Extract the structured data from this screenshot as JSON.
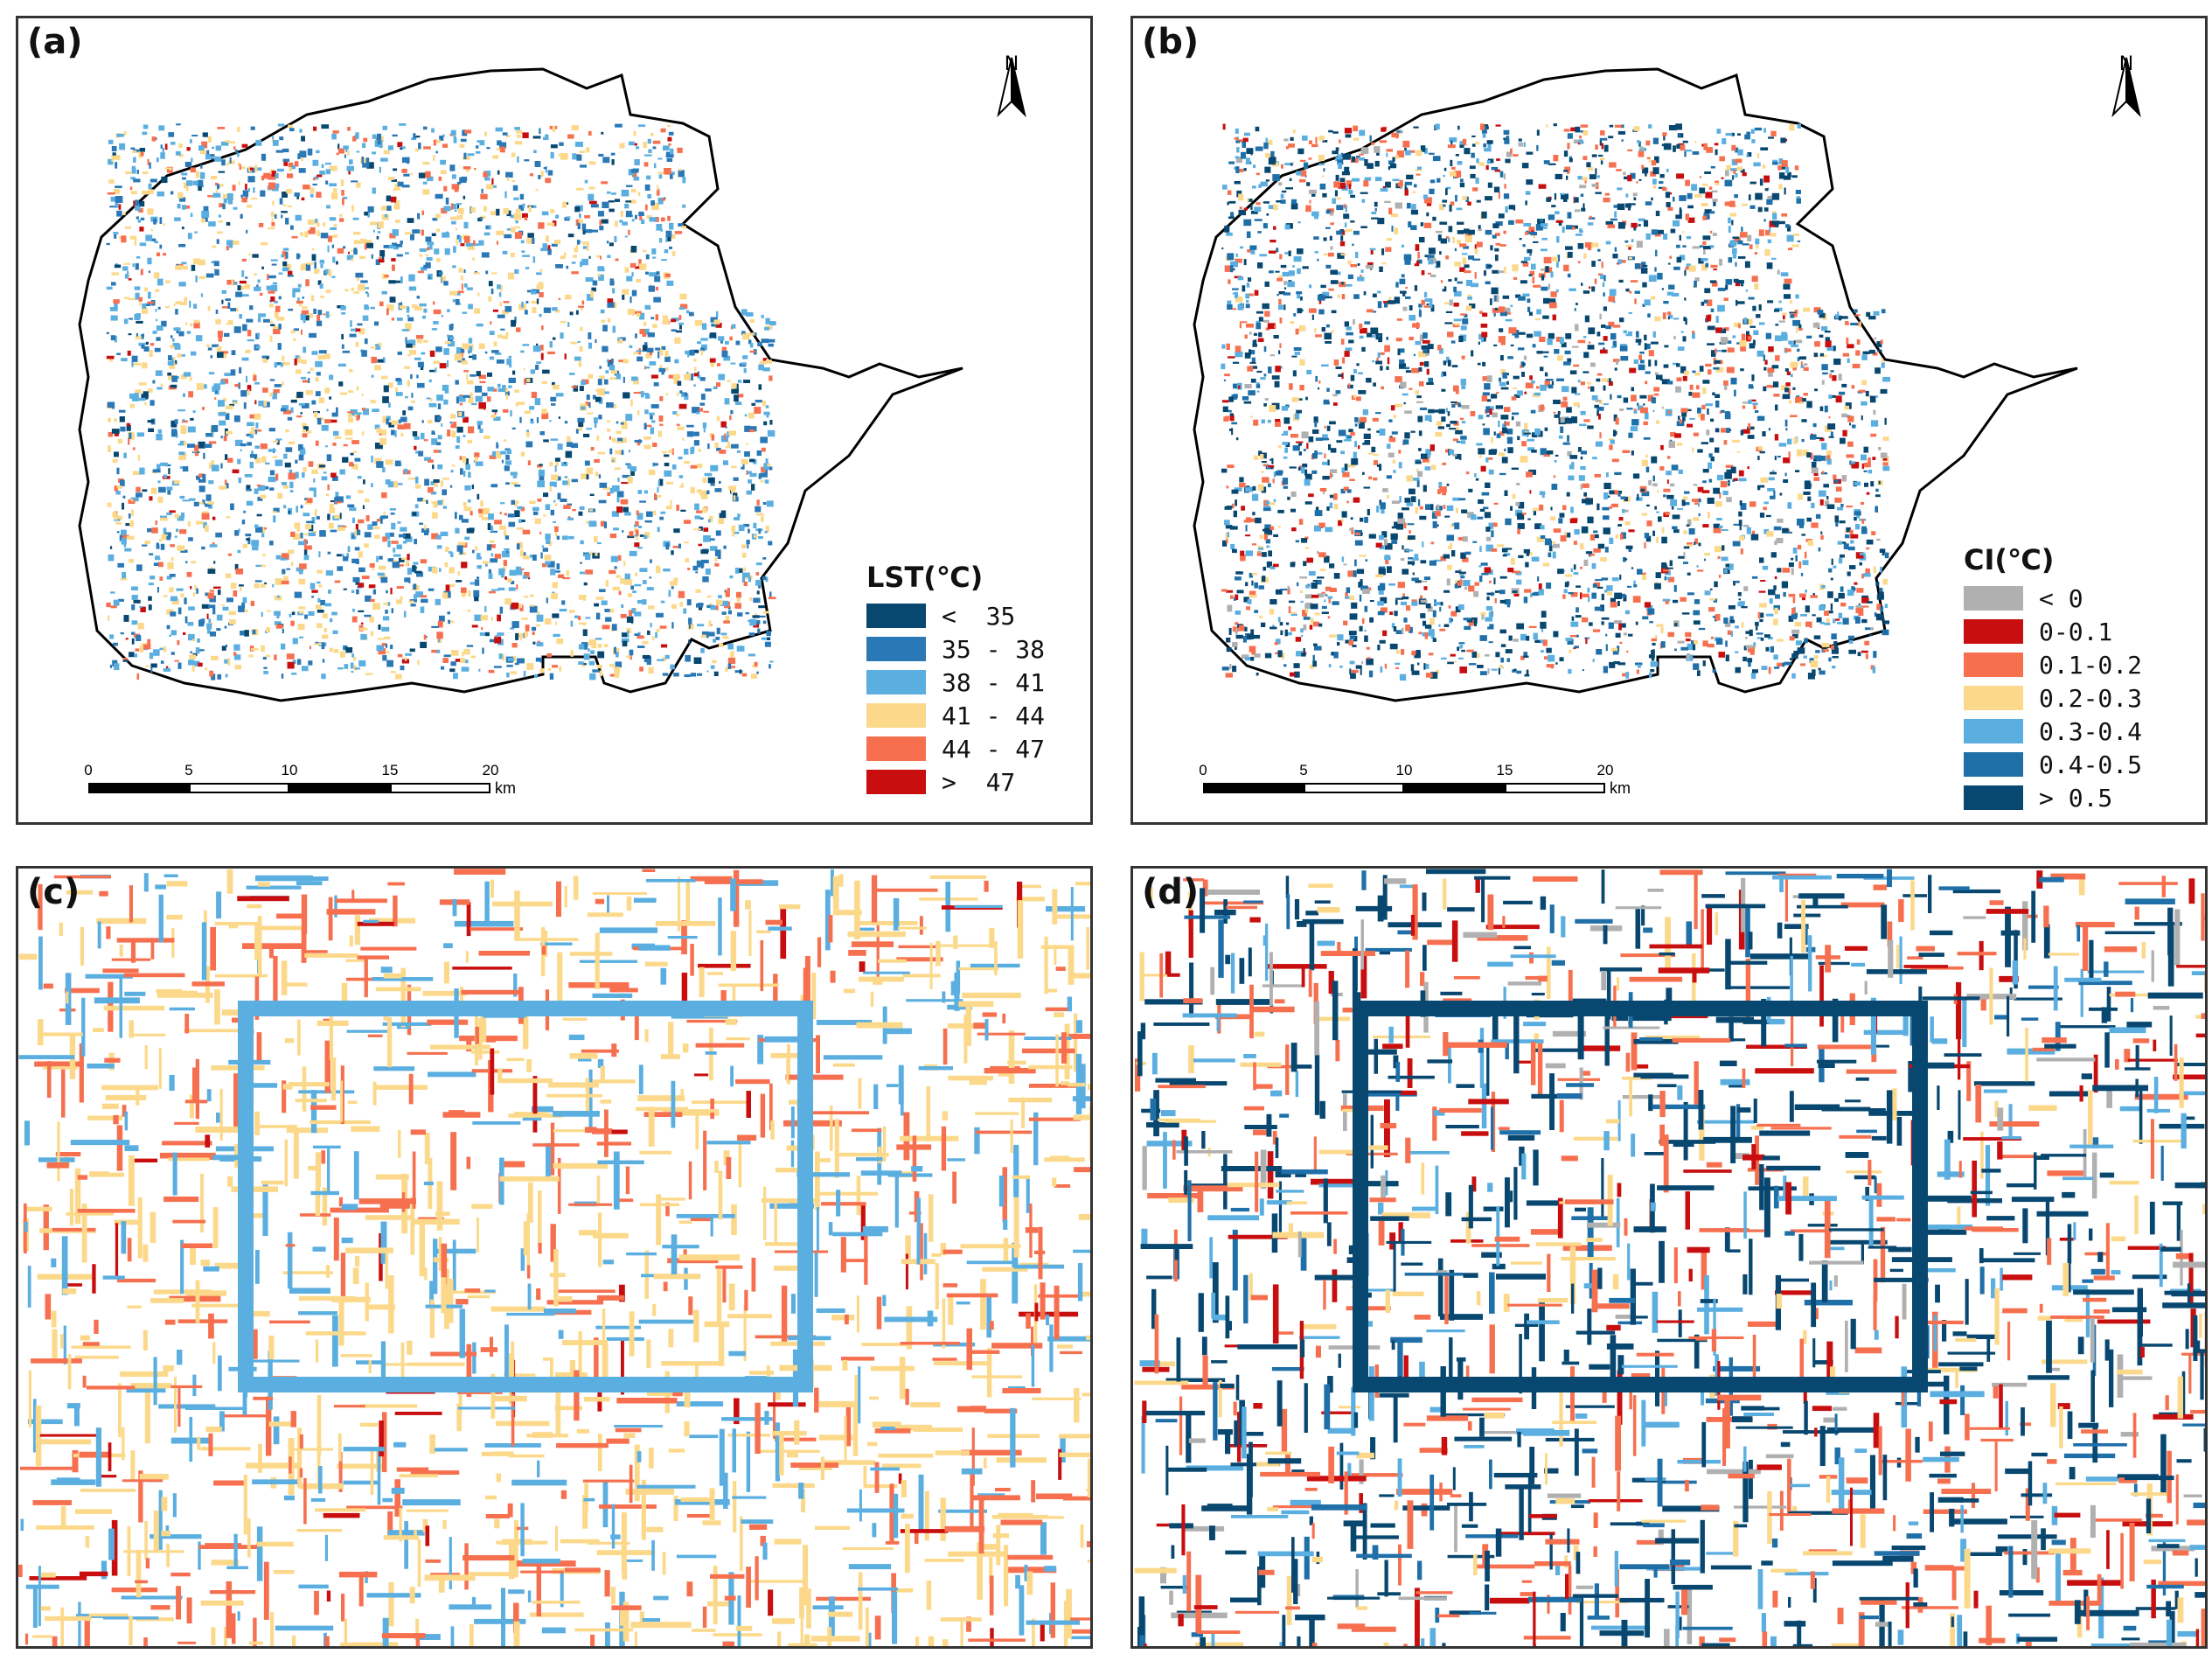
{
  "panels": {
    "a": {
      "label": "(a)",
      "north": "N",
      "legend_title": "LST(℃)",
      "legend": [
        {
          "text": "<  35",
          "color": "#08476f"
        },
        {
          "text": "35 - 38",
          "color": "#2a78b6"
        },
        {
          "text": "38 - 41",
          "color": "#5aaee0"
        },
        {
          "text": "41 - 44",
          "color": "#fcd98a"
        },
        {
          "text": "44 - 47",
          "color": "#f6704f"
        },
        {
          "text": ">  47",
          "color": "#c80e0e"
        }
      ]
    },
    "b": {
      "label": "(b)",
      "north": "N",
      "legend_title": "CI(℃)",
      "legend": [
        {
          "text": "< 0",
          "color": "#b0b0b0"
        },
        {
          "text": "0-0.1",
          "color": "#c80e0e"
        },
        {
          "text": "0.1-0.2",
          "color": "#f6704f"
        },
        {
          "text": "0.2-0.3",
          "color": "#fcd98a"
        },
        {
          "text": "0.3-0.4",
          "color": "#5aaee0"
        },
        {
          "text": "0.4-0.5",
          "color": "#1f6fa8"
        },
        {
          "text": "> 0.5",
          "color": "#08476f"
        }
      ]
    },
    "c": {
      "label": "(c)"
    },
    "d": {
      "label": "(d)"
    }
  },
  "scalebar": {
    "ticks": [
      "0",
      "5",
      "10",
      "15",
      "20"
    ],
    "unit": "km"
  },
  "colors": {
    "outline": "#000000",
    "lst": [
      "#08476f",
      "#2a78b6",
      "#5aaee0",
      "#fcd98a",
      "#f6704f",
      "#c80e0e"
    ],
    "ci": [
      "#b0b0b0",
      "#c80e0e",
      "#f6704f",
      "#fcd98a",
      "#5aaee0",
      "#1f6fa8",
      "#08476f"
    ]
  }
}
